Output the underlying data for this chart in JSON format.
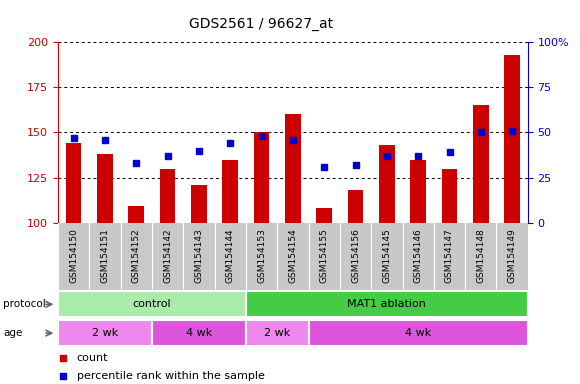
{
  "title": "GDS2561 / 96627_at",
  "samples": [
    "GSM154150",
    "GSM154151",
    "GSM154152",
    "GSM154142",
    "GSM154143",
    "GSM154144",
    "GSM154153",
    "GSM154154",
    "GSM154155",
    "GSM154156",
    "GSM154145",
    "GSM154146",
    "GSM154147",
    "GSM154148",
    "GSM154149"
  ],
  "counts": [
    144,
    138,
    109,
    130,
    121,
    135,
    150,
    160,
    108,
    118,
    143,
    135,
    130,
    165,
    193
  ],
  "percentiles": [
    47,
    46,
    33,
    37,
    40,
    44,
    48,
    46,
    31,
    32,
    37,
    37,
    39,
    50,
    51
  ],
  "bar_color": "#cc0000",
  "dot_color": "#0000cc",
  "baseline": 100,
  "ylim_left": [
    100,
    200
  ],
  "ylim_right": [
    0,
    100
  ],
  "yticks_left": [
    100,
    125,
    150,
    175,
    200
  ],
  "yticks_right": [
    0,
    25,
    50,
    75,
    100
  ],
  "left_tick_color": "#cc0000",
  "right_tick_color": "#0000cc",
  "protocol_groups": [
    {
      "label": "control",
      "start": 0,
      "end": 5,
      "color": "#aaeaaa"
    },
    {
      "label": "MAT1 ablation",
      "start": 6,
      "end": 14,
      "color": "#44cc44"
    }
  ],
  "age_groups": [
    {
      "label": "2 wk",
      "start": 0,
      "end": 2
    },
    {
      "label": "4 wk",
      "start": 3,
      "end": 5
    },
    {
      "label": "2 wk",
      "start": 6,
      "end": 7
    },
    {
      "label": "4 wk",
      "start": 8,
      "end": 14
    }
  ],
  "age_colors": [
    "#ee88ee",
    "#dd55dd",
    "#ee88ee",
    "#dd55dd"
  ],
  "bg_color": "#ffffff",
  "xticklabel_bg": "#c8c8c8",
  "legend_items": [
    {
      "label": "count",
      "color": "#cc0000"
    },
    {
      "label": "percentile rank within the sample",
      "color": "#0000cc"
    }
  ]
}
